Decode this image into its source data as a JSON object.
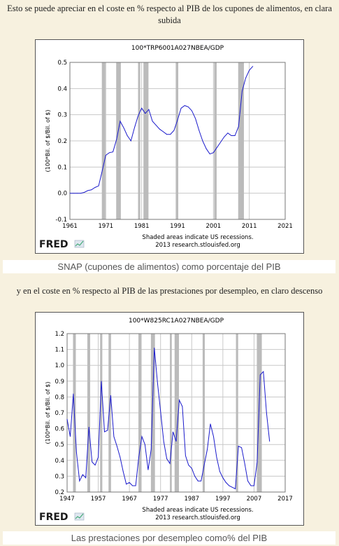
{
  "intro1": "Esto se puede apreciar en el coste en % respecto al PIB de los cupones de alimentos, en clara subida",
  "caption1": "SNAP (cupones de alimentos) como porcentaje del PIB",
  "intro2": "y en el coste en % respecto al PIB de las prestaciones por desempleo, en claro descenso",
  "caption2": "Las prestaciones por desempleo como% del PIB",
  "colors": {
    "line": "#1a1acc",
    "recession": "#bbbbbb",
    "grid": "#c8c8c8"
  },
  "chart_data": [
    {
      "type": "line",
      "title": "100*TRP6001A027NBEA/GDP",
      "ylabel": "(100*Bil. of $/Bil. of $)",
      "footnote": [
        "Shaded areas indicate US recessions.",
        "2013 research.stlouisfed.org"
      ],
      "logo": "FRED",
      "xlim": [
        1961,
        2021
      ],
      "ylim": [
        -0.1,
        0.5
      ],
      "xticks": [
        1961,
        1971,
        1981,
        1991,
        2001,
        2011,
        2021
      ],
      "yticks": [
        -0.1,
        0.0,
        0.1,
        0.2,
        0.3,
        0.4,
        0.5
      ],
      "grid": true,
      "recessions": [
        [
          1969.9,
          1970.9
        ],
        [
          1973.9,
          1975.2
        ],
        [
          1980.0,
          1980.6
        ],
        [
          1981.5,
          1982.9
        ],
        [
          1990.5,
          1991.2
        ],
        [
          2001.2,
          2001.9
        ],
        [
          2007.9,
          2009.5
        ]
      ],
      "series": [
        {
          "x": [
            1961,
            1962,
            1963,
            1964,
            1965,
            1966,
            1967,
            1968,
            1969,
            1970,
            1971,
            1972,
            1973,
            1974,
            1975,
            1976,
            1977,
            1978,
            1979,
            1980,
            1981,
            1982,
            1983,
            1984,
            1985,
            1986,
            1987,
            1988,
            1989,
            1990,
            1991,
            1992,
            1993,
            1994,
            1995,
            1996,
            1997,
            1998,
            1999,
            2000,
            2001,
            2002,
            2003,
            2004,
            2005,
            2006,
            2007,
            2008,
            2009,
            2010,
            2011,
            2012
          ],
          "values": [
            0.0,
            0.0,
            0.0,
            0.0,
            0.003,
            0.01,
            0.013,
            0.022,
            0.028,
            0.085,
            0.145,
            0.155,
            0.158,
            0.205,
            0.275,
            0.25,
            0.22,
            0.2,
            0.25,
            0.295,
            0.325,
            0.305,
            0.32,
            0.275,
            0.26,
            0.245,
            0.235,
            0.225,
            0.225,
            0.24,
            0.28,
            0.325,
            0.335,
            0.33,
            0.315,
            0.285,
            0.24,
            0.2,
            0.17,
            0.15,
            0.155,
            0.175,
            0.195,
            0.215,
            0.23,
            0.22,
            0.22,
            0.255,
            0.39,
            0.44,
            0.47,
            0.485
          ]
        }
      ]
    },
    {
      "type": "line",
      "title": "100*W825RC1A027NBEA/GDP",
      "ylabel": "(100*Bil. of $/Bil. of $)",
      "footnote": [
        "Shaded areas indicate US recessions.",
        "2013 research.stlouisfed.org"
      ],
      "logo": "FRED",
      "xlim": [
        1947,
        2017
      ],
      "ylim": [
        0.2,
        1.2
      ],
      "xticks": [
        1947,
        1957,
        1967,
        1977,
        1987,
        1997,
        2007,
        2017
      ],
      "yticks": [
        0.2,
        0.3,
        0.4,
        0.5,
        0.6,
        0.7,
        0.8,
        0.9,
        1.0,
        1.1,
        1.2
      ],
      "grid": true,
      "recessions": [
        [
          1948.9,
          1949.8
        ],
        [
          1953.5,
          1954.4
        ],
        [
          1957.6,
          1958.3
        ],
        [
          1960.3,
          1961.1
        ],
        [
          1969.9,
          1970.9
        ],
        [
          1973.9,
          1975.2
        ],
        [
          1980.0,
          1980.6
        ],
        [
          1981.5,
          1982.9
        ],
        [
          1990.5,
          1991.2
        ],
        [
          2001.2,
          2001.9
        ],
        [
          2007.9,
          2009.5
        ]
      ],
      "series": [
        {
          "x": [
            1947,
            1948,
            1949,
            1950,
            1951,
            1952,
            1953,
            1954,
            1955,
            1956,
            1957,
            1958,
            1959,
            1960,
            1961,
            1962,
            1963,
            1964,
            1965,
            1966,
            1967,
            1968,
            1969,
            1970,
            1971,
            1972,
            1973,
            1974,
            1975,
            1976,
            1977,
            1978,
            1979,
            1980,
            1981,
            1982,
            1983,
            1984,
            1985,
            1986,
            1987,
            1988,
            1989,
            1990,
            1991,
            1992,
            1993,
            1994,
            1995,
            1996,
            1997,
            1998,
            1999,
            2000,
            2001,
            2002,
            2003,
            2004,
            2005,
            2006,
            2007,
            2008,
            2009,
            2010,
            2011,
            2012
          ],
          "values": [
            0.66,
            0.55,
            0.82,
            0.45,
            0.27,
            0.31,
            0.29,
            0.61,
            0.39,
            0.37,
            0.42,
            0.9,
            0.58,
            0.59,
            0.81,
            0.55,
            0.49,
            0.42,
            0.33,
            0.25,
            0.26,
            0.24,
            0.24,
            0.42,
            0.55,
            0.5,
            0.34,
            0.47,
            1.11,
            0.89,
            0.71,
            0.52,
            0.41,
            0.38,
            0.58,
            0.52,
            0.78,
            0.74,
            0.43,
            0.37,
            0.35,
            0.3,
            0.27,
            0.27,
            0.37,
            0.47,
            0.63,
            0.55,
            0.42,
            0.33,
            0.29,
            0.26,
            0.24,
            0.23,
            0.22,
            0.49,
            0.48,
            0.38,
            0.27,
            0.24,
            0.24,
            0.39,
            0.94,
            0.96,
            0.7,
            0.52
          ]
        }
      ]
    }
  ]
}
